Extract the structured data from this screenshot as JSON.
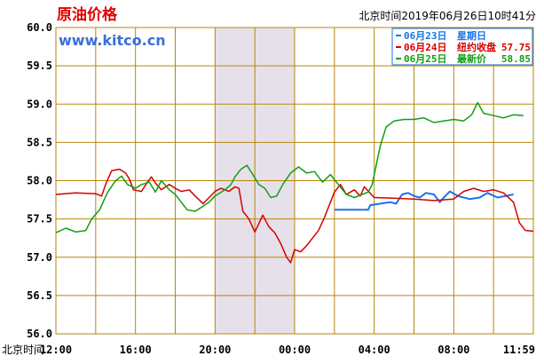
{
  "title": "原油价格",
  "watermark": "www.kitco.cn",
  "timestamp": "北京时间2019年06月26日10时41分",
  "x_axis_prefix": "北京时间",
  "colors": {
    "title": "#e00000",
    "watermark": "#3a6fd8",
    "grid": "#b8860b",
    "shade": "#e6e0ea",
    "blue": "#1a73e8",
    "red": "#d40000",
    "green": "#10a010"
  },
  "legend": [
    {
      "date": "06月23日",
      "label": "星期日",
      "value": "",
      "color": "#1a73e8"
    },
    {
      "date": "06月24日",
      "label": "纽约收盘",
      "value": "57.75",
      "color": "#d40000"
    },
    {
      "date": "06月25日",
      "label": "最新价",
      "value": "58.85",
      "color": "#10a010"
    }
  ],
  "chart_data": {
    "type": "line",
    "ylim": [
      56.0,
      60.0
    ],
    "y_ticks": [
      "56.0",
      "56.5",
      "57.0",
      "57.5",
      "58.0",
      "58.5",
      "59.0",
      "59.5",
      "60.0"
    ],
    "x_tick_labels": [
      "12:00",
      "16:00",
      "20:00",
      "00:00",
      "04:00",
      "08:00",
      "11:59"
    ],
    "x_range_hours": [
      0,
      24
    ],
    "x_tick_hours": [
      0,
      4,
      8,
      12,
      16,
      20,
      24
    ],
    "shaded_range_hours": [
      8.0,
      12.0
    ],
    "series": [
      {
        "name": "06月23日",
        "color": "#1a73e8",
        "points": [
          [
            14.0,
            57.62
          ],
          [
            15.7,
            57.62
          ],
          [
            15.8,
            57.68
          ],
          [
            16.3,
            57.7
          ],
          [
            16.8,
            57.72
          ],
          [
            17.1,
            57.7
          ],
          [
            17.4,
            57.82
          ],
          [
            17.7,
            57.84
          ],
          [
            18.0,
            57.8
          ],
          [
            18.3,
            57.78
          ],
          [
            18.6,
            57.84
          ],
          [
            19.0,
            57.82
          ],
          [
            19.3,
            57.72
          ],
          [
            19.5,
            57.78
          ],
          [
            19.8,
            57.86
          ],
          [
            20.2,
            57.8
          ],
          [
            20.8,
            57.76
          ],
          [
            21.3,
            57.78
          ],
          [
            21.7,
            57.84
          ],
          [
            22.2,
            57.78
          ],
          [
            22.6,
            57.8
          ],
          [
            23.0,
            57.82
          ]
        ]
      },
      {
        "name": "06月24日",
        "color": "#d40000",
        "points": [
          [
            0.0,
            57.82
          ],
          [
            1.0,
            57.84
          ],
          [
            2.0,
            57.83
          ],
          [
            2.3,
            57.8
          ],
          [
            2.5,
            57.95
          ],
          [
            2.8,
            58.13
          ],
          [
            3.2,
            58.15
          ],
          [
            3.5,
            58.1
          ],
          [
            3.7,
            58.02
          ],
          [
            3.9,
            57.88
          ],
          [
            4.3,
            57.86
          ],
          [
            4.6,
            57.98
          ],
          [
            4.8,
            58.05
          ],
          [
            5.0,
            57.97
          ],
          [
            5.3,
            57.88
          ],
          [
            5.7,
            57.95
          ],
          [
            6.0,
            57.9
          ],
          [
            6.3,
            57.86
          ],
          [
            6.7,
            57.88
          ],
          [
            7.0,
            57.8
          ],
          [
            7.4,
            57.7
          ],
          [
            7.7,
            57.78
          ],
          [
            8.0,
            57.86
          ],
          [
            8.3,
            57.9
          ],
          [
            8.7,
            57.86
          ],
          [
            9.0,
            57.92
          ],
          [
            9.2,
            57.9
          ],
          [
            9.4,
            57.6
          ],
          [
            9.7,
            57.5
          ],
          [
            10.0,
            57.33
          ],
          [
            10.4,
            57.55
          ],
          [
            10.7,
            57.4
          ],
          [
            11.0,
            57.32
          ],
          [
            11.3,
            57.18
          ],
          [
            11.6,
            57.0
          ],
          [
            11.8,
            56.93
          ],
          [
            12.0,
            57.1
          ],
          [
            12.3,
            57.07
          ],
          [
            12.6,
            57.15
          ],
          [
            12.9,
            57.25
          ],
          [
            13.2,
            57.35
          ],
          [
            13.5,
            57.52
          ],
          [
            13.8,
            57.72
          ],
          [
            14.0,
            57.85
          ],
          [
            14.3,
            57.95
          ],
          [
            14.6,
            57.82
          ],
          [
            15.0,
            57.88
          ],
          [
            15.3,
            57.8
          ],
          [
            15.5,
            57.92
          ],
          [
            16.0,
            57.78
          ],
          [
            17.0,
            57.77
          ],
          [
            18.0,
            57.76
          ],
          [
            19.0,
            57.74
          ],
          [
            20.0,
            57.76
          ],
          [
            20.5,
            57.86
          ],
          [
            21.0,
            57.9
          ],
          [
            21.5,
            57.86
          ],
          [
            22.0,
            57.88
          ],
          [
            22.5,
            57.84
          ],
          [
            23.0,
            57.72
          ],
          [
            23.3,
            57.45
          ],
          [
            23.6,
            57.35
          ],
          [
            24.0,
            57.34
          ]
        ]
      },
      {
        "name": "06月25日",
        "color": "#10a010",
        "points": [
          [
            0.0,
            57.32
          ],
          [
            0.5,
            57.38
          ],
          [
            1.0,
            57.33
          ],
          [
            1.5,
            57.35
          ],
          [
            1.8,
            57.5
          ],
          [
            2.2,
            57.62
          ],
          [
            2.6,
            57.85
          ],
          [
            3.0,
            58.0
          ],
          [
            3.3,
            58.06
          ],
          [
            3.6,
            57.95
          ],
          [
            4.0,
            57.9
          ],
          [
            4.3,
            57.95
          ],
          [
            4.7,
            57.98
          ],
          [
            5.0,
            57.85
          ],
          [
            5.3,
            58.0
          ],
          [
            5.7,
            57.88
          ],
          [
            6.0,
            57.82
          ],
          [
            6.3,
            57.72
          ],
          [
            6.6,
            57.62
          ],
          [
            7.0,
            57.6
          ],
          [
            7.3,
            57.65
          ],
          [
            7.7,
            57.72
          ],
          [
            8.0,
            57.8
          ],
          [
            8.5,
            57.88
          ],
          [
            8.8,
            57.95
          ],
          [
            9.0,
            58.05
          ],
          [
            9.3,
            58.15
          ],
          [
            9.6,
            58.2
          ],
          [
            9.9,
            58.08
          ],
          [
            10.2,
            57.95
          ],
          [
            10.5,
            57.9
          ],
          [
            10.8,
            57.78
          ],
          [
            11.1,
            57.8
          ],
          [
            11.4,
            57.95
          ],
          [
            11.8,
            58.1
          ],
          [
            12.2,
            58.18
          ],
          [
            12.6,
            58.1
          ],
          [
            13.0,
            58.12
          ],
          [
            13.4,
            57.98
          ],
          [
            13.8,
            58.08
          ],
          [
            14.2,
            57.95
          ],
          [
            14.6,
            57.82
          ],
          [
            15.0,
            57.78
          ],
          [
            15.4,
            57.82
          ],
          [
            15.7,
            57.85
          ],
          [
            15.9,
            57.95
          ],
          [
            16.1,
            58.2
          ],
          [
            16.3,
            58.45
          ],
          [
            16.6,
            58.7
          ],
          [
            17.0,
            58.78
          ],
          [
            17.5,
            58.8
          ],
          [
            18.0,
            58.8
          ],
          [
            18.5,
            58.82
          ],
          [
            19.0,
            58.76
          ],
          [
            19.5,
            58.78
          ],
          [
            20.0,
            58.8
          ],
          [
            20.5,
            58.78
          ],
          [
            20.9,
            58.86
          ],
          [
            21.2,
            59.02
          ],
          [
            21.5,
            58.88
          ],
          [
            22.0,
            58.85
          ],
          [
            22.5,
            58.82
          ],
          [
            23.0,
            58.86
          ],
          [
            23.5,
            58.85
          ]
        ]
      }
    ]
  }
}
